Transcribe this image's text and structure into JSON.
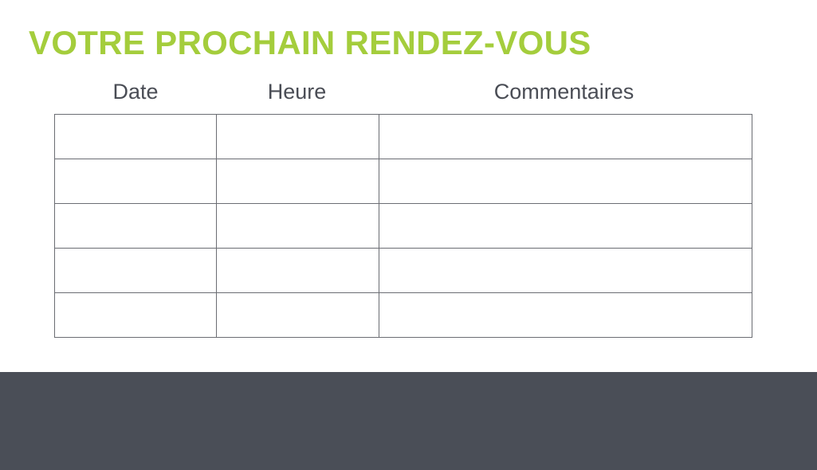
{
  "title": "VOTRE PROCHAIN RENDEZ-VOUS",
  "table": {
    "headers": [
      "Date",
      "Heure",
      "Commentaires"
    ],
    "rows": [
      [
        "",
        "",
        ""
      ],
      [
        "",
        "",
        ""
      ],
      [
        "",
        "",
        ""
      ],
      [
        "",
        "",
        ""
      ],
      [
        "",
        "",
        ""
      ]
    ]
  },
  "colors": {
    "accent": "#a4cd3c",
    "text": "#4a4d55",
    "footer": "#4a4e57"
  }
}
